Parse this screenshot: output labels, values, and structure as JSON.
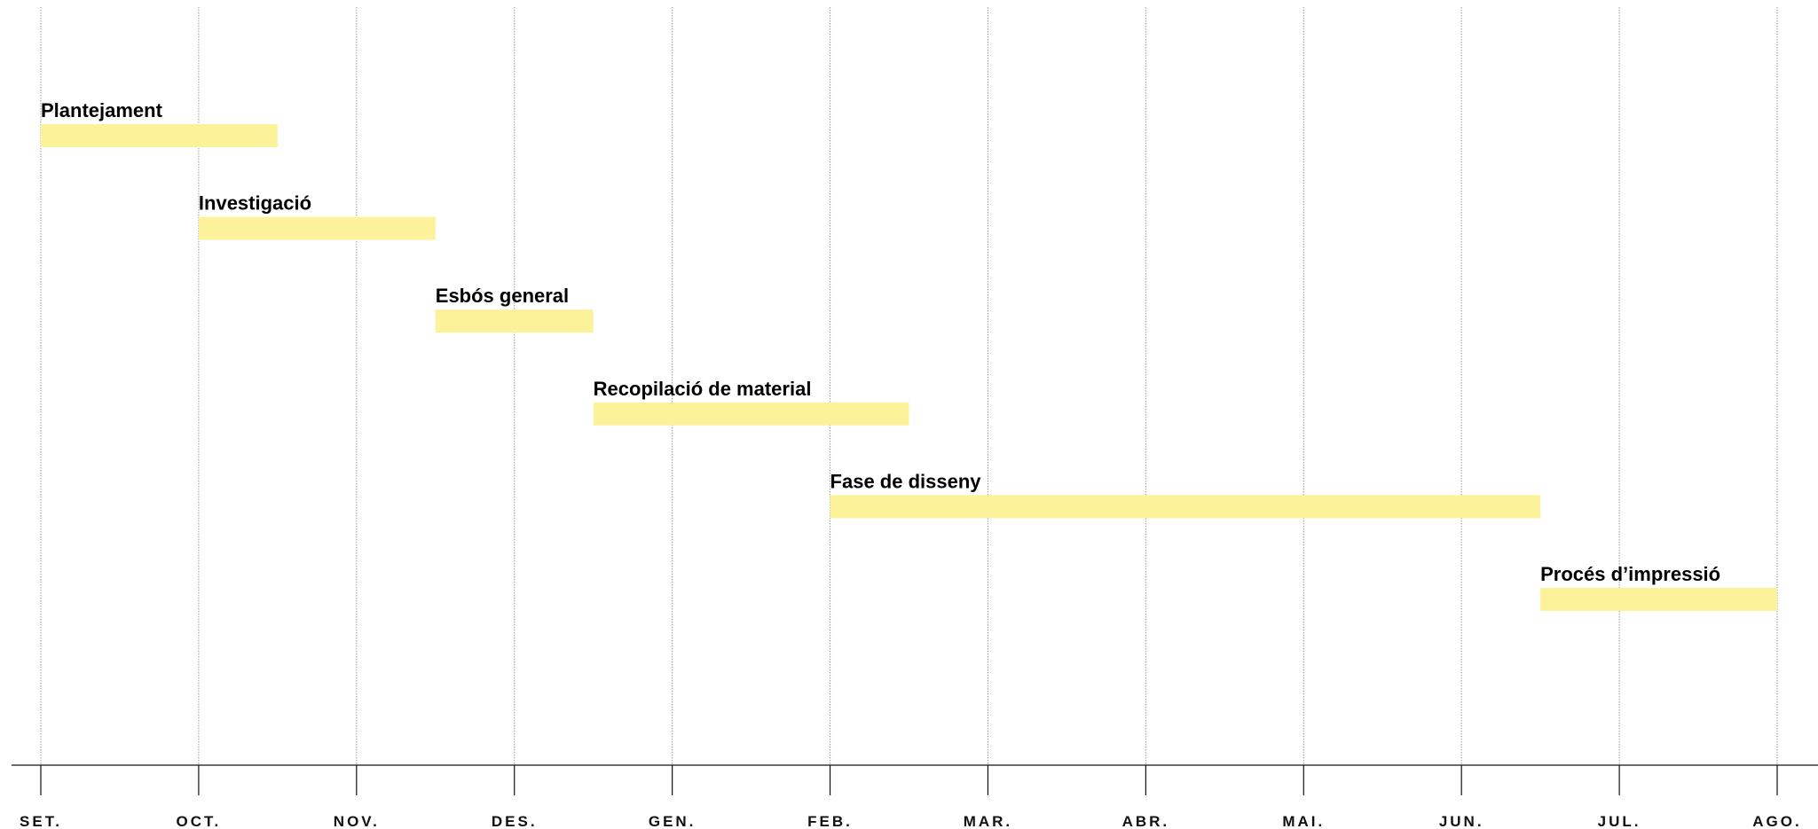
{
  "chart_data": {
    "type": "gantt",
    "title": "",
    "xlabel": "",
    "ylabel": "",
    "grid": true,
    "bar_color": "#fcf29a",
    "categories": [
      "SET.",
      "OCT.",
      "NOV.",
      "DES.",
      "GEN.",
      "FEB.",
      "MAR.",
      "ABR.",
      "MAI.",
      "JUN.",
      "JUL.",
      "AGO."
    ],
    "tasks": [
      {
        "label": "Plantejament",
        "start": 0,
        "end": 1.5
      },
      {
        "label": "Investigació",
        "start": 1,
        "end": 2.5
      },
      {
        "label": "Esbós general",
        "start": 2.5,
        "end": 3.5
      },
      {
        "label": "Recopilació de material",
        "start": 3.5,
        "end": 5.5
      },
      {
        "label": "Fase de disseny",
        "start": 5,
        "end": 9.5
      },
      {
        "label": "Procés d’impressió",
        "start": 9.5,
        "end": 11
      }
    ],
    "xlim": [
      0,
      11
    ]
  }
}
